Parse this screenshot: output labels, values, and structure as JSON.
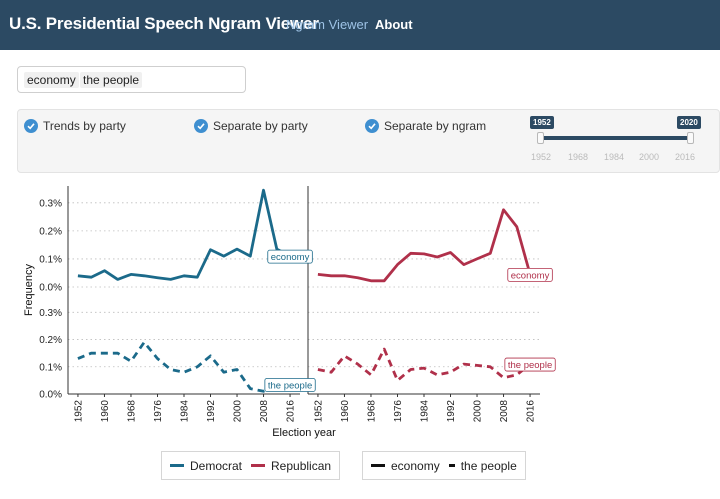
{
  "navbar": {
    "brand": "U.S. Presidential Speech Ngram Viewer",
    "links": [
      {
        "label": "Ngram Viewer",
        "active": false
      },
      {
        "label": "About",
        "active": true
      }
    ]
  },
  "search": {
    "tags": [
      "economy",
      "the people"
    ]
  },
  "options": {
    "trends_by_party": {
      "label": "Trends by party",
      "checked": true
    },
    "separate_by_party": {
      "label": "Separate by party",
      "checked": true
    },
    "separate_by_ngram": {
      "label": "Separate by ngram",
      "checked": true
    }
  },
  "slider": {
    "min_label": "1952",
    "max_label": "2020",
    "ticks": [
      "1952",
      "1968",
      "1984",
      "2000",
      "2016"
    ]
  },
  "colors": {
    "democrat": "#1b6a8a",
    "republican": "#b0304a",
    "navbar": "#2c4a63",
    "check": "#3f8fd0"
  },
  "chart_data": {
    "type": "line",
    "xlabel": "Election year",
    "ylabel": "Frequency",
    "x_ticks": [
      "1952",
      "1960",
      "1968",
      "1976",
      "1984",
      "1992",
      "2000",
      "2008",
      "2016"
    ],
    "y_ticks": [
      "0.0%",
      "0.1%",
      "0.2%",
      "0.3%"
    ],
    "ylim": [
      0,
      0.36
    ],
    "grid": true,
    "facets": [
      {
        "party": "Democrat",
        "ngram": "economy",
        "label": "economy",
        "style": "solid",
        "x": [
          1952,
          1956,
          1960,
          1964,
          1968,
          1972,
          1976,
          1980,
          1984,
          1988,
          1992,
          1996,
          2000,
          2004,
          2008,
          2012,
          2016
        ],
        "y": [
          0.04,
          0.035,
          0.058,
          0.027,
          0.045,
          0.04,
          0.033,
          0.027,
          0.04,
          0.035,
          0.133,
          0.11,
          0.135,
          0.11,
          0.345,
          0.135,
          0.11
        ]
      },
      {
        "party": "Republican",
        "ngram": "economy",
        "label": "economy",
        "style": "solid",
        "x": [
          1952,
          1956,
          1960,
          1964,
          1968,
          1972,
          1976,
          1980,
          1984,
          1988,
          1992,
          1996,
          2000,
          2004,
          2008,
          2012,
          2016
        ],
        "y": [
          0.045,
          0.04,
          0.04,
          0.033,
          0.022,
          0.022,
          0.08,
          0.12,
          0.118,
          0.107,
          0.123,
          0.08,
          0.1,
          0.12,
          0.275,
          0.215,
          0.045
        ]
      },
      {
        "party": "Democrat",
        "ngram": "the people",
        "label": "the people",
        "style": "dashed",
        "x": [
          1952,
          1956,
          1960,
          1964,
          1968,
          1972,
          1976,
          1980,
          1984,
          1988,
          1992,
          1996,
          2000,
          2004,
          2008,
          2012,
          2016
        ],
        "y": [
          0.13,
          0.15,
          0.15,
          0.15,
          0.12,
          0.19,
          0.13,
          0.09,
          0.08,
          0.1,
          0.14,
          0.08,
          0.09,
          0.02,
          0.01,
          0.035,
          0.035
        ]
      },
      {
        "party": "Republican",
        "ngram": "the people",
        "label": "the people",
        "style": "dashed",
        "x": [
          1952,
          1956,
          1960,
          1964,
          1968,
          1972,
          1976,
          1980,
          1984,
          1988,
          1992,
          1996,
          2000,
          2004,
          2008,
          2012,
          2016
        ],
        "y": [
          0.09,
          0.08,
          0.14,
          0.11,
          0.07,
          0.165,
          0.05,
          0.09,
          0.095,
          0.07,
          0.08,
          0.11,
          0.105,
          0.1,
          0.06,
          0.07,
          0.11
        ]
      }
    ]
  },
  "legend": {
    "party": [
      {
        "label": "Democrat",
        "color": "#1b6a8a"
      },
      {
        "label": "Republican",
        "color": "#b0304a"
      }
    ],
    "ngram": [
      {
        "label": "economy",
        "style": "solid"
      },
      {
        "label": "the people",
        "style": "dashed"
      }
    ]
  }
}
